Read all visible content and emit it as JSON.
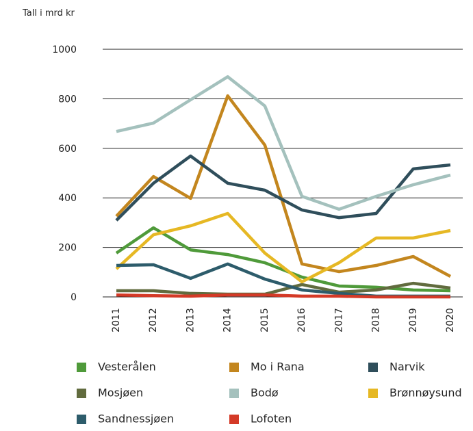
{
  "chart_data": {
    "type": "line",
    "y_label": "Tall i mrd kr",
    "categories": [
      "2011",
      "2012",
      "2013",
      "2014",
      "2015",
      "2016",
      "2017",
      "2018",
      "2019",
      "2020"
    ],
    "ylim": [
      0,
      1000
    ],
    "yticks": [
      0,
      200,
      400,
      600,
      800,
      1000
    ],
    "grid": true,
    "series": [
      {
        "name": "Vesterålen",
        "color": "#4f9a3a",
        "values": [
          177,
          279,
          190,
          171,
          138,
          80,
          44,
          39,
          28,
          25
        ]
      },
      {
        "name": "Mo i Rana",
        "color": "#c3861e",
        "values": [
          326,
          486,
          398,
          812,
          613,
          133,
          102,
          127,
          163,
          83
        ]
      },
      {
        "name": "Narvik",
        "color": "#2f4e5b",
        "values": [
          309,
          459,
          569,
          459,
          431,
          351,
          320,
          337,
          517,
          533
        ]
      },
      {
        "name": "Mosjøen",
        "color": "#616b3e",
        "values": [
          25,
          25,
          14,
          11,
          11,
          50,
          19,
          28,
          55,
          36
        ]
      },
      {
        "name": "Bodø",
        "color": "#a4c1bd",
        "values": [
          668,
          702,
          796,
          889,
          771,
          406,
          354,
          406,
          453,
          492
        ]
      },
      {
        "name": "Brønnøysund",
        "color": "#e6b824",
        "values": [
          113,
          251,
          287,
          337,
          177,
          61,
          138,
          238,
          238,
          268
        ]
      },
      {
        "name": "Sandnessjøen",
        "color": "#2d5c6b",
        "values": [
          127,
          130,
          75,
          133,
          72,
          28,
          14,
          3,
          3,
          3
        ]
      },
      {
        "name": "Lofoten",
        "color": "#d43a27",
        "values": [
          8,
          5,
          3,
          8,
          8,
          3,
          3,
          0,
          0,
          0
        ]
      }
    ]
  }
}
